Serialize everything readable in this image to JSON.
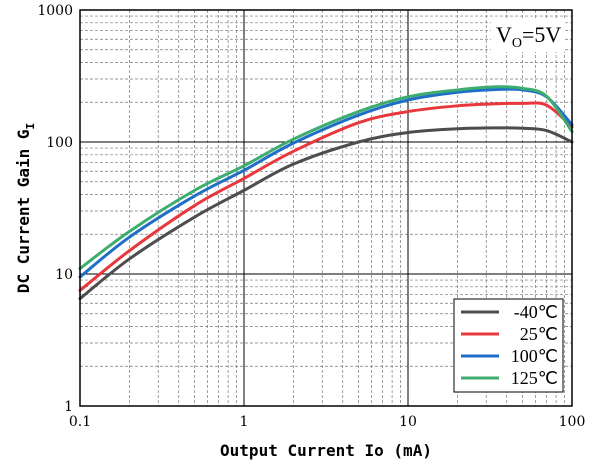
{
  "chart_data": {
    "type": "line",
    "title": "",
    "xlabel": "Output Current Io (mA)",
    "ylabel": "DC Current Gain G",
    "ylabel_subscript": "I",
    "xscale": "log",
    "yscale": "log",
    "xlim": [
      0.1,
      100
    ],
    "ylim": [
      1,
      1000
    ],
    "xticks": [
      0.1,
      1,
      10,
      100
    ],
    "xtick_labels": [
      "0.1",
      "1",
      "10",
      "100"
    ],
    "yticks": [
      1,
      10,
      100,
      1000
    ],
    "ytick_labels": [
      "1",
      "10",
      "100",
      "1000"
    ],
    "grid": true,
    "legend_position": "bottom-right",
    "annotation": {
      "main": "V",
      "sub": "O",
      "rest": "=5V"
    },
    "series": [
      {
        "name": "-40℃",
        "color": "#4d4d4d",
        "x": [
          0.1,
          0.2,
          0.5,
          1,
          2,
          5,
          10,
          20,
          35,
          50,
          70,
          100
        ],
        "y": [
          6.5,
          13,
          27,
          43,
          68,
          100,
          118,
          126,
          128,
          127,
          122,
          100
        ]
      },
      {
        "name": "25℃",
        "color": "#e8383d",
        "x": [
          0.1,
          0.2,
          0.5,
          1,
          2,
          5,
          10,
          20,
          35,
          50,
          70,
          100
        ],
        "y": [
          7.5,
          15,
          33,
          53,
          85,
          140,
          170,
          188,
          195,
          196,
          190,
          130
        ]
      },
      {
        "name": "100℃",
        "color": "#1f6ec8",
        "x": [
          0.1,
          0.2,
          0.5,
          1,
          2,
          5,
          10,
          20,
          35,
          50,
          70,
          100
        ],
        "y": [
          9.5,
          19,
          39,
          61,
          98,
          160,
          208,
          238,
          250,
          248,
          220,
          135
        ]
      },
      {
        "name": "125℃",
        "color": "#3cad6e",
        "x": [
          0.1,
          0.2,
          0.5,
          1,
          2,
          5,
          10,
          20,
          35,
          50,
          70,
          100
        ],
        "y": [
          11,
          21,
          43,
          66,
          105,
          170,
          220,
          248,
          262,
          255,
          222,
          120
        ]
      }
    ]
  }
}
